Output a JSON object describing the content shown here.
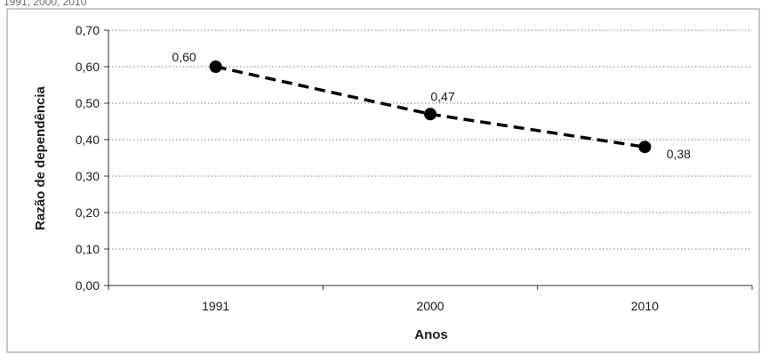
{
  "caption": "1991, 2000, 2010",
  "chart_data": {
    "type": "line",
    "title": "",
    "xlabel": "Anos",
    "ylabel": "Razão de dependência",
    "categories": [
      "1991",
      "2000",
      "2010"
    ],
    "series": [
      {
        "values": [
          0.6,
          0.47,
          0.38
        ],
        "data_labels": [
          "0,60",
          "0,47",
          "0,38"
        ],
        "style": "dashed",
        "marker": "circle",
        "color": "#000000"
      }
    ],
    "ylim": [
      0,
      0.7
    ],
    "y_ticks": [
      0,
      0.1,
      0.2,
      0.3,
      0.4,
      0.5,
      0.6,
      0.7
    ],
    "y_tick_labels": [
      "0,00",
      "0,10",
      "0,20",
      "0,30",
      "0,40",
      "0,50",
      "0,60",
      "0,70"
    ],
    "grid": "horizontal-dotted",
    "legend": "none"
  }
}
